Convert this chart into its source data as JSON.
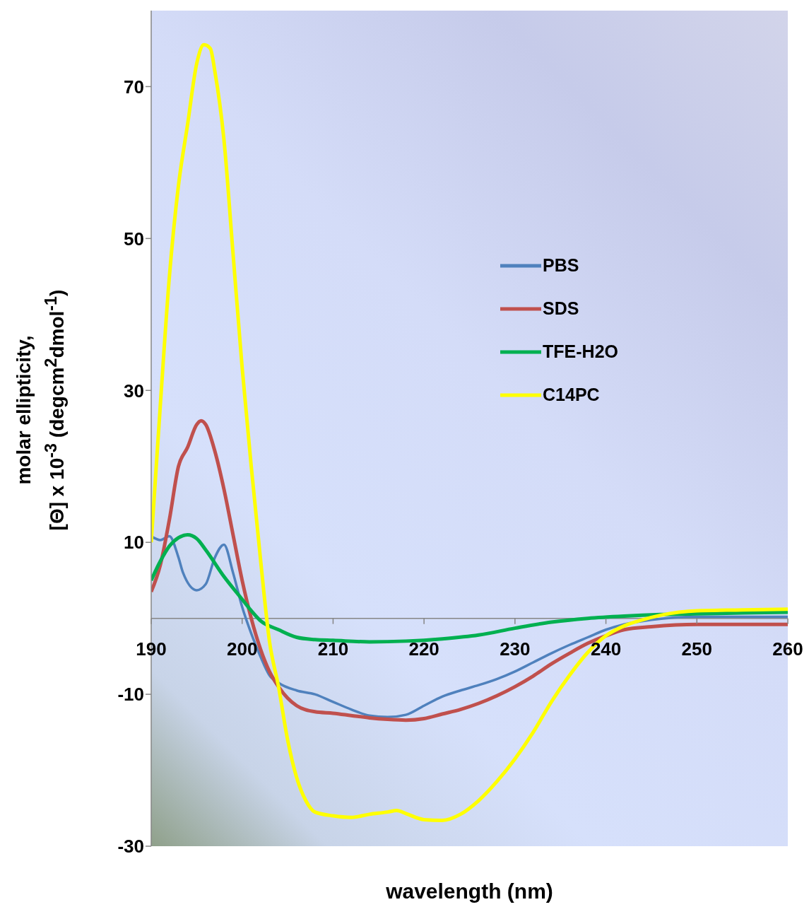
{
  "chart_data": {
    "type": "line",
    "xlabel": "wavelength (nm)",
    "ylabel": "molar ellipticity,\n[Θ] x 10$^{-3}$ (degcm$^{2}$dmol$^{-1}$)",
    "xlim": [
      190,
      260
    ],
    "xticks": [
      190,
      200,
      210,
      220,
      230,
      240,
      250,
      260
    ],
    "ylim": [
      -30,
      80
    ],
    "yticks": [
      -30,
      -10,
      10,
      30,
      50,
      70
    ],
    "grid": false,
    "legend": "right",
    "marker": "none",
    "line_style": "solid",
    "series": [
      {
        "name": "PBS",
        "color": "#4f81bd",
        "x": [
          190,
          191,
          192,
          193,
          193.5,
          195,
          196,
          197,
          198,
          199,
          200,
          201,
          202,
          203,
          204,
          206,
          208,
          210,
          212,
          214,
          216,
          218,
          220,
          222,
          224,
          226,
          228,
          230,
          232,
          234,
          236,
          238,
          240,
          242,
          245,
          250,
          255,
          260
        ],
        "values": [
          10.8,
          10.3,
          10.8,
          8,
          6,
          3.7,
          4.5,
          8,
          9.7,
          6,
          1.5,
          -2,
          -5,
          -7.5,
          -8.5,
          -9.5,
          -10,
          -11,
          -12,
          -12.8,
          -13,
          -12.7,
          -11.5,
          -10.3,
          -9.5,
          -8.8,
          -8,
          -7,
          -5.8,
          -4.6,
          -3.5,
          -2.5,
          -1.5,
          -0.8,
          -0.2,
          0.2,
          0.2,
          0.2
        ]
      },
      {
        "name": "SDS",
        "color": "#c0504d",
        "x": [
          190,
          191,
          192,
          193,
          194,
          195,
          195.5,
          196,
          197,
          198,
          199,
          200,
          201,
          202,
          203,
          204,
          205,
          206,
          208,
          210,
          212,
          214,
          216,
          218,
          220,
          222,
          224,
          226,
          228,
          230,
          232,
          234,
          236,
          238,
          240,
          242,
          245,
          250,
          255,
          260
        ],
        "values": [
          3.5,
          7,
          13,
          20,
          22.5,
          25.5,
          26,
          25.5,
          22,
          17,
          11,
          5,
          0,
          -4,
          -7,
          -9,
          -10.5,
          -11.5,
          -12.3,
          -12.5,
          -12.8,
          -13.1,
          -13.3,
          -13.4,
          -13.2,
          -12.6,
          -12,
          -11.2,
          -10.2,
          -9,
          -7.6,
          -6,
          -4.6,
          -3.3,
          -2.3,
          -1.5,
          -1.1,
          -0.8,
          -0.8,
          -0.8
        ]
      },
      {
        "name": "TFE-H2O",
        "color": "#00b050",
        "x": [
          190,
          191,
          192,
          193,
          194,
          195,
          196,
          198,
          200,
          201,
          202,
          204,
          206,
          208,
          210,
          214,
          218,
          222,
          226,
          230,
          234,
          238,
          242,
          246,
          250,
          255,
          260
        ],
        "values": [
          5,
          7.5,
          9.5,
          10.6,
          11,
          10.5,
          9,
          5.5,
          2.5,
          1,
          -0.3,
          -1.5,
          -2.5,
          -2.8,
          -2.9,
          -3.1,
          -3,
          -2.7,
          -2.2,
          -1.3,
          -0.5,
          0,
          0.3,
          0.5,
          0.6,
          0.7,
          0.8
        ]
      },
      {
        "name": "C14PC",
        "color": "#ffff00",
        "x": [
          190,
          191,
          192,
          193,
          194,
          195,
          195.8,
          196.5,
          197,
          198,
          199,
          200,
          201,
          202,
          203,
          204,
          205,
          206,
          207,
          208,
          210,
          212,
          214,
          216,
          217,
          218,
          220,
          222,
          224,
          226,
          228,
          230,
          232,
          234,
          236,
          238,
          240,
          242,
          244,
          246,
          248,
          250,
          255,
          260
        ],
        "values": [
          10,
          28,
          45,
          57,
          65,
          73,
          75.5,
          75,
          72,
          63,
          48,
          33,
          20,
          8,
          -3,
          -9,
          -16,
          -21,
          -24,
          -25.5,
          -26,
          -26.2,
          -25.8,
          -25.5,
          -25.3,
          -25.7,
          -26.5,
          -26.6,
          -25.8,
          -24,
          -21.5,
          -18.5,
          -15,
          -11,
          -7.5,
          -4.5,
          -2.3,
          -1,
          -0.2,
          0.4,
          0.8,
          1,
          1.1,
          1.2
        ]
      }
    ]
  }
}
